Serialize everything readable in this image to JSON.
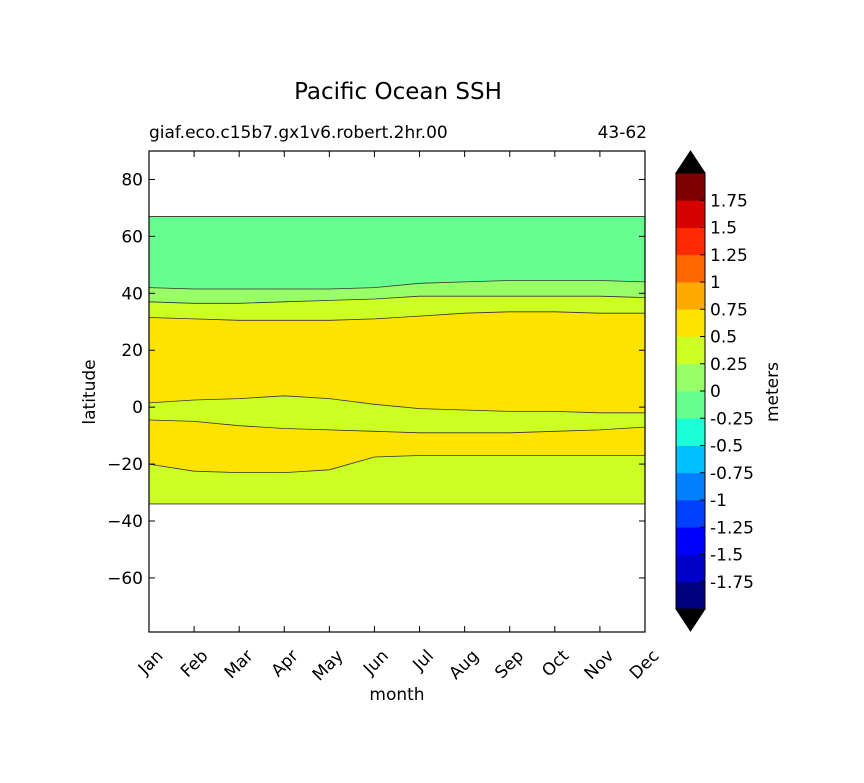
{
  "chart_data": {
    "type": "heatmap",
    "subtype": "filled-contour",
    "title": "Pacific Ocean SSH",
    "subtitle_left": "giaf.eco.c15b7.gx1v6.robert.2hr.00",
    "subtitle_right": "43-62",
    "xlabel": "month",
    "ylabel": "latitude",
    "x_categories": [
      "Jan",
      "Feb",
      "Mar",
      "Apr",
      "May",
      "Jun",
      "Jul",
      "Aug",
      "Sep",
      "Oct",
      "Nov",
      "Dec"
    ],
    "xlim": [
      0,
      11
    ],
    "ylim": [
      -79,
      90
    ],
    "yticks": [
      80,
      60,
      40,
      20,
      0,
      -20,
      -40,
      -60
    ],
    "ytick_labels": [
      "80",
      "60",
      "40",
      "20",
      "0",
      "−20",
      "−40",
      "−60"
    ],
    "grid": false,
    "data_lat_range": [
      -34,
      67
    ],
    "regions": [
      {
        "level": "-0.25 to 0",
        "color": "#66ff90",
        "lat_from": 67,
        "lat_to_by_month": [
          42,
          41.5,
          41.5,
          41.5,
          41.5,
          42,
          43.5,
          44,
          44.5,
          44.5,
          44.5,
          44
        ]
      },
      {
        "level": "0 to 0.25",
        "color": "#99ff66",
        "lat_from_by_month": [
          42,
          41.5,
          41.5,
          41.5,
          41.5,
          42,
          43.5,
          44,
          44.5,
          44.5,
          44.5,
          44
        ],
        "lat_to_by_month": [
          37,
          36.5,
          36.5,
          37,
          37.5,
          38,
          39,
          39,
          39,
          39,
          39,
          38.5
        ]
      },
      {
        "level": "0.25 to 0.5",
        "color": "#ccff22",
        "note": "band between 0 contour and 0.5 contour, plus equatorial and southern tongues"
      },
      {
        "level": "0.5 to 0.75",
        "color": "#ffe300",
        "north_edge_by_month": [
          31.5,
          31,
          30.5,
          30.5,
          30.5,
          31,
          32,
          33,
          33.5,
          33.5,
          33,
          33
        ],
        "equatorial_south_edge_by_month": [
          1.5,
          2.5,
          3,
          4,
          3,
          1,
          -0.5,
          -1,
          -1.5,
          -1.5,
          -2,
          -2
        ],
        "southern_tongue_north_by_month": [
          -4.5,
          -5,
          -6.5,
          -7.5,
          -8,
          -8.5,
          -9,
          -9,
          -9,
          -8.5,
          -8,
          -7
        ],
        "southern_tongue_south_by_month": [
          -20,
          -22.5,
          -23,
          -23,
          -22,
          -17.5,
          -17,
          -17,
          -17,
          -17,
          -17,
          -17
        ]
      }
    ],
    "colorbar": {
      "label": "meters",
      "extend": "both",
      "levels": [
        -2,
        -1.75,
        -1.5,
        -1.25,
        -1,
        -0.75,
        -0.5,
        -0.25,
        0,
        0.25,
        0.5,
        0.75,
        1,
        1.25,
        1.5,
        1.75,
        2
      ],
      "colors": [
        "#00007f",
        "#0000c8",
        "#0000ff",
        "#0040ff",
        "#0080ff",
        "#00c0ff",
        "#1affd5",
        "#66ff90",
        "#99ff66",
        "#ccff22",
        "#ffe300",
        "#ffaa00",
        "#ff6600",
        "#ff2a00",
        "#d40000",
        "#7f0000"
      ],
      "under_color": "#000000",
      "over_color": "#000000",
      "tick_labels": [
        "1.75",
        "1.5",
        "1.25",
        "1",
        "0.75",
        "0.5",
        "0.25",
        "0",
        "-0.25",
        "-0.5",
        "-0.75",
        "-1",
        "-1.25",
        "-1.5",
        "-1.75"
      ]
    }
  }
}
